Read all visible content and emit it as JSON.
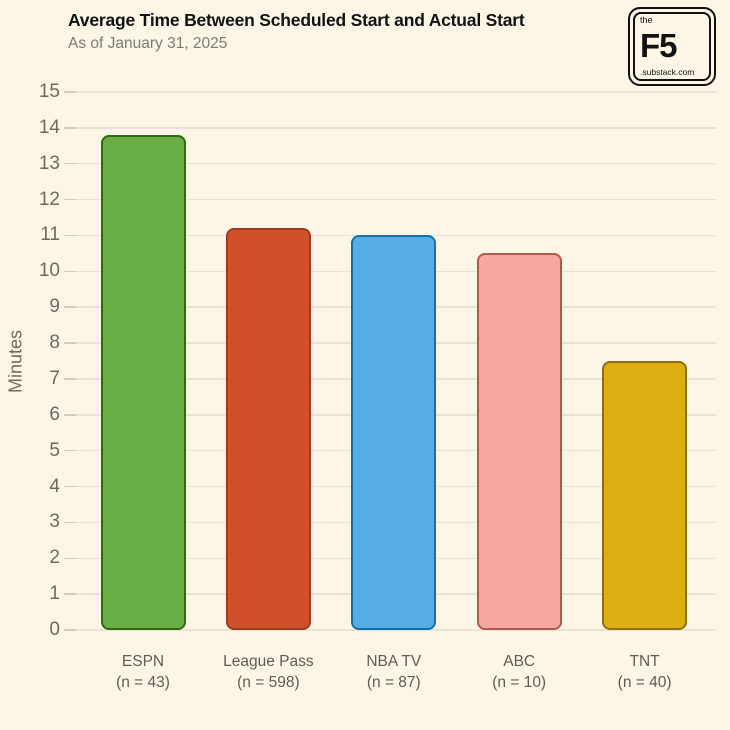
{
  "page": {
    "background": "#FDF6E7"
  },
  "header": {
    "title": "Average Time Between Scheduled Start and Actual Start",
    "subtitle": "As of January 31, 2025"
  },
  "logo": {
    "top_text": "the",
    "main_text": "F5",
    "bottom_text": ".substack.com"
  },
  "chart_data": {
    "type": "bar",
    "title": "Average Time Between Scheduled Start and Actual Start",
    "subtitle": "As of January 31, 2025",
    "xlabel": "",
    "ylabel": "Minutes",
    "ylim": [
      0,
      15
    ],
    "ytick_step": 1,
    "grid": true,
    "legend": false,
    "categories": [
      "ESPN",
      "League Pass",
      "NBA TV",
      "ABC",
      "TNT"
    ],
    "category_sublabels": [
      "(n = 43)",
      "(n = 598)",
      "(n = 87)",
      "(n = 10)",
      "(n = 40)"
    ],
    "values": [
      13.8,
      11.2,
      11.0,
      10.5,
      7.5
    ],
    "bar_colors": [
      "#68AE45",
      "#D0502A",
      "#56AEE4",
      "#F8A79D",
      "#DFAE12"
    ],
    "bar_border_colors": [
      "#2E6B12",
      "#9E3A1D",
      "#1272A8",
      "#AF5A50",
      "#8F6E0F"
    ]
  }
}
